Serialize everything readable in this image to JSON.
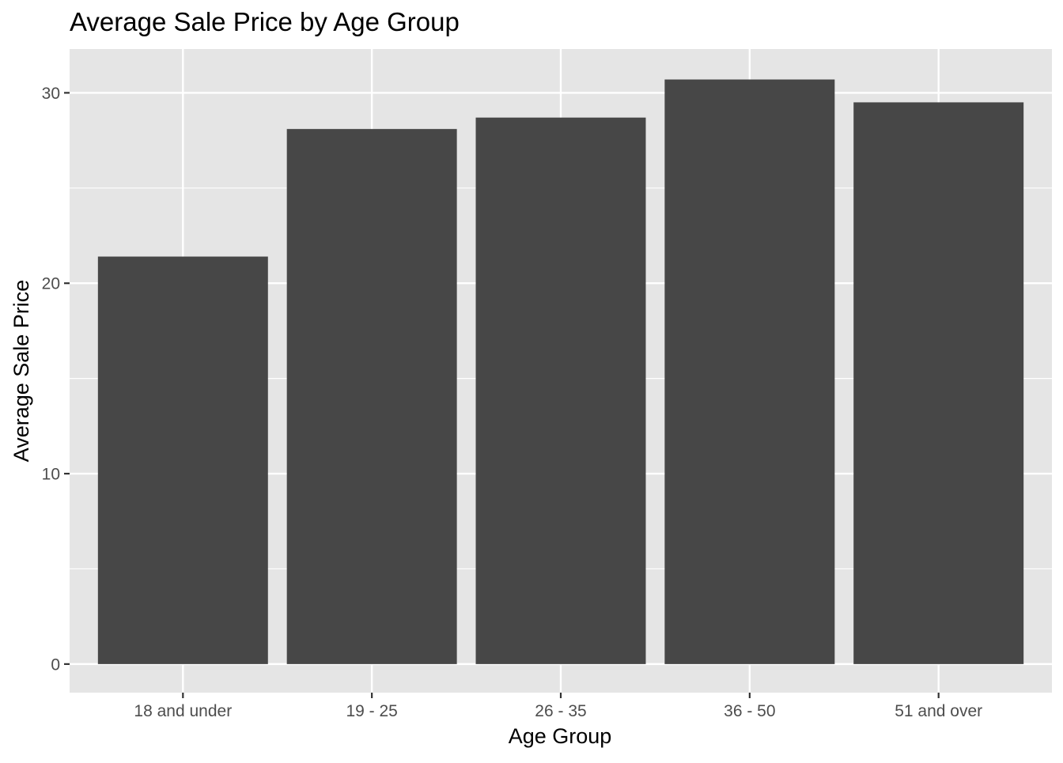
{
  "chart_data": {
    "type": "bar",
    "title": "Average Sale Price by Age Group",
    "xlabel": "Age Group",
    "ylabel": "Average Sale Price",
    "categories": [
      "18 and under",
      "19 - 25",
      "26 - 35",
      "36 - 50",
      "51 and over"
    ],
    "values": [
      21.4,
      28.1,
      28.7,
      30.7,
      29.5
    ],
    "ylim": [
      -1.5,
      32.3
    ],
    "yticks": [
      0,
      10,
      20,
      30
    ],
    "yticks_minor": [
      5,
      15,
      25
    ],
    "grid": true,
    "legend": "none",
    "colors": {
      "panel_background": "#e5e5e5",
      "grid": "#ffffff",
      "bar": "#474747",
      "tick": "#333333",
      "tick_label": "#4d4d4d",
      "text": "#000000"
    }
  }
}
